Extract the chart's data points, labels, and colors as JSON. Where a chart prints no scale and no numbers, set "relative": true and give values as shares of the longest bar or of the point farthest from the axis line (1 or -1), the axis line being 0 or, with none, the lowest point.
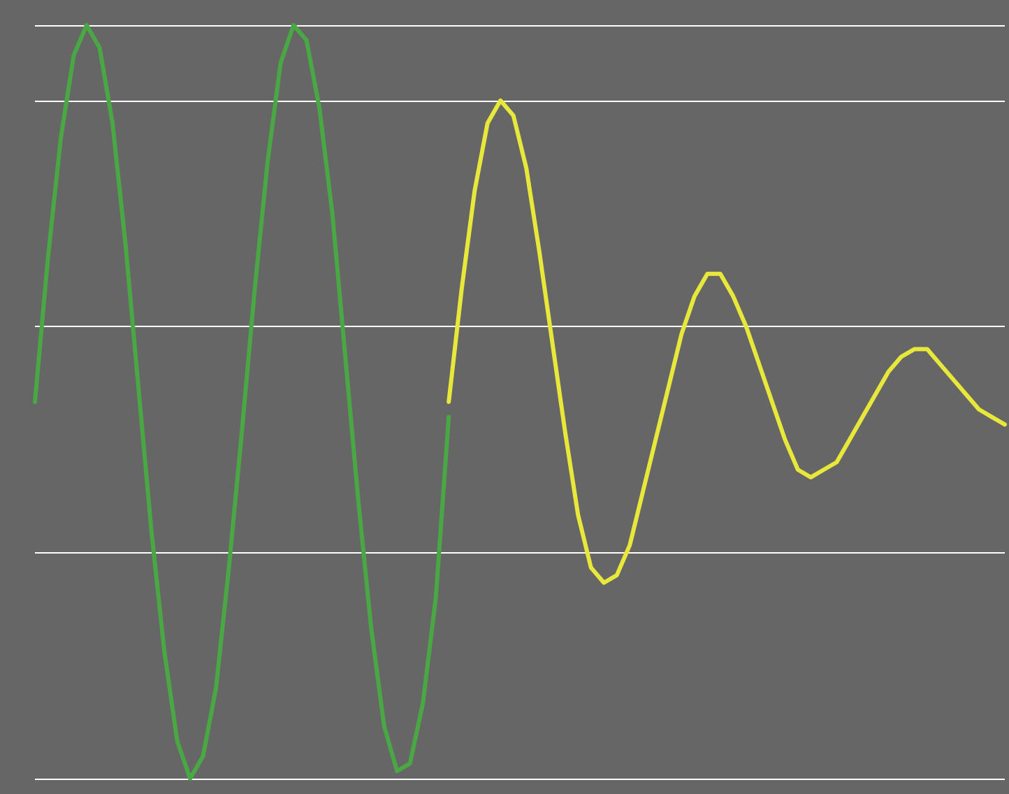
{
  "chart_data": {
    "type": "line",
    "relative": true,
    "grid": "y",
    "marker": "none",
    "line_style": "solid",
    "categories": [
      null,
      null,
      null,
      null,
      null,
      null,
      null,
      null,
      null,
      null,
      null,
      null,
      null,
      null,
      null,
      null,
      null,
      null,
      null,
      null,
      null,
      null,
      null,
      null,
      null,
      null,
      null,
      null,
      null,
      null,
      null,
      null,
      null,
      null,
      null,
      null,
      null,
      null,
      null,
      null,
      null,
      null,
      null,
      null,
      null,
      null,
      null,
      null,
      null,
      null,
      null,
      null,
      null,
      null,
      null,
      null,
      null,
      null,
      null,
      null,
      null,
      null,
      null,
      null,
      null,
      null,
      null,
      null,
      null,
      null,
      null,
      null,
      null,
      null,
      null,
      null
    ],
    "series": [
      {
        "color": "#4aa844",
        "values": [
          0.5,
          0.69,
          0.85,
          0.96,
          1.0,
          0.97,
          0.87,
          0.71,
          0.52,
          0.33,
          0.17,
          0.05,
          0.0,
          0.03,
          0.12,
          0.28,
          0.46,
          0.65,
          0.82,
          0.95,
          1.0,
          0.98,
          0.89,
          0.75,
          0.56,
          0.37,
          0.2,
          0.07,
          0.01,
          0.02,
          0.1,
          0.24,
          0.48,
          null,
          null,
          null,
          null,
          null,
          null,
          null,
          null,
          null,
          null,
          null,
          null,
          null,
          null,
          null,
          null,
          null,
          null,
          null,
          null,
          null,
          null,
          null,
          null,
          null,
          null,
          null,
          null,
          null,
          null,
          null,
          null,
          null,
          null,
          null,
          null,
          null,
          null,
          null,
          null,
          null,
          null,
          null
        ]
      },
      {
        "color": "#e8e83a",
        "values": [
          null,
          null,
          null,
          null,
          null,
          null,
          null,
          null,
          null,
          null,
          null,
          null,
          null,
          null,
          null,
          null,
          null,
          null,
          null,
          null,
          null,
          null,
          null,
          null,
          null,
          null,
          null,
          null,
          null,
          null,
          null,
          null,
          0.5,
          0.65,
          0.78,
          0.87,
          0.9,
          0.88,
          0.81,
          0.7,
          0.58,
          0.46,
          0.35,
          0.28,
          0.26,
          0.27,
          0.31,
          0.38,
          0.45,
          0.52,
          0.59,
          0.64,
          0.67,
          0.67,
          0.64,
          0.6,
          0.55,
          0.5,
          0.45,
          0.41,
          0.4,
          0.41,
          0.42,
          0.45,
          0.48,
          0.51,
          0.54,
          0.56,
          0.57,
          0.57,
          0.55,
          0.53,
          0.51,
          0.49,
          0.48,
          0.47
        ]
      }
    ]
  }
}
